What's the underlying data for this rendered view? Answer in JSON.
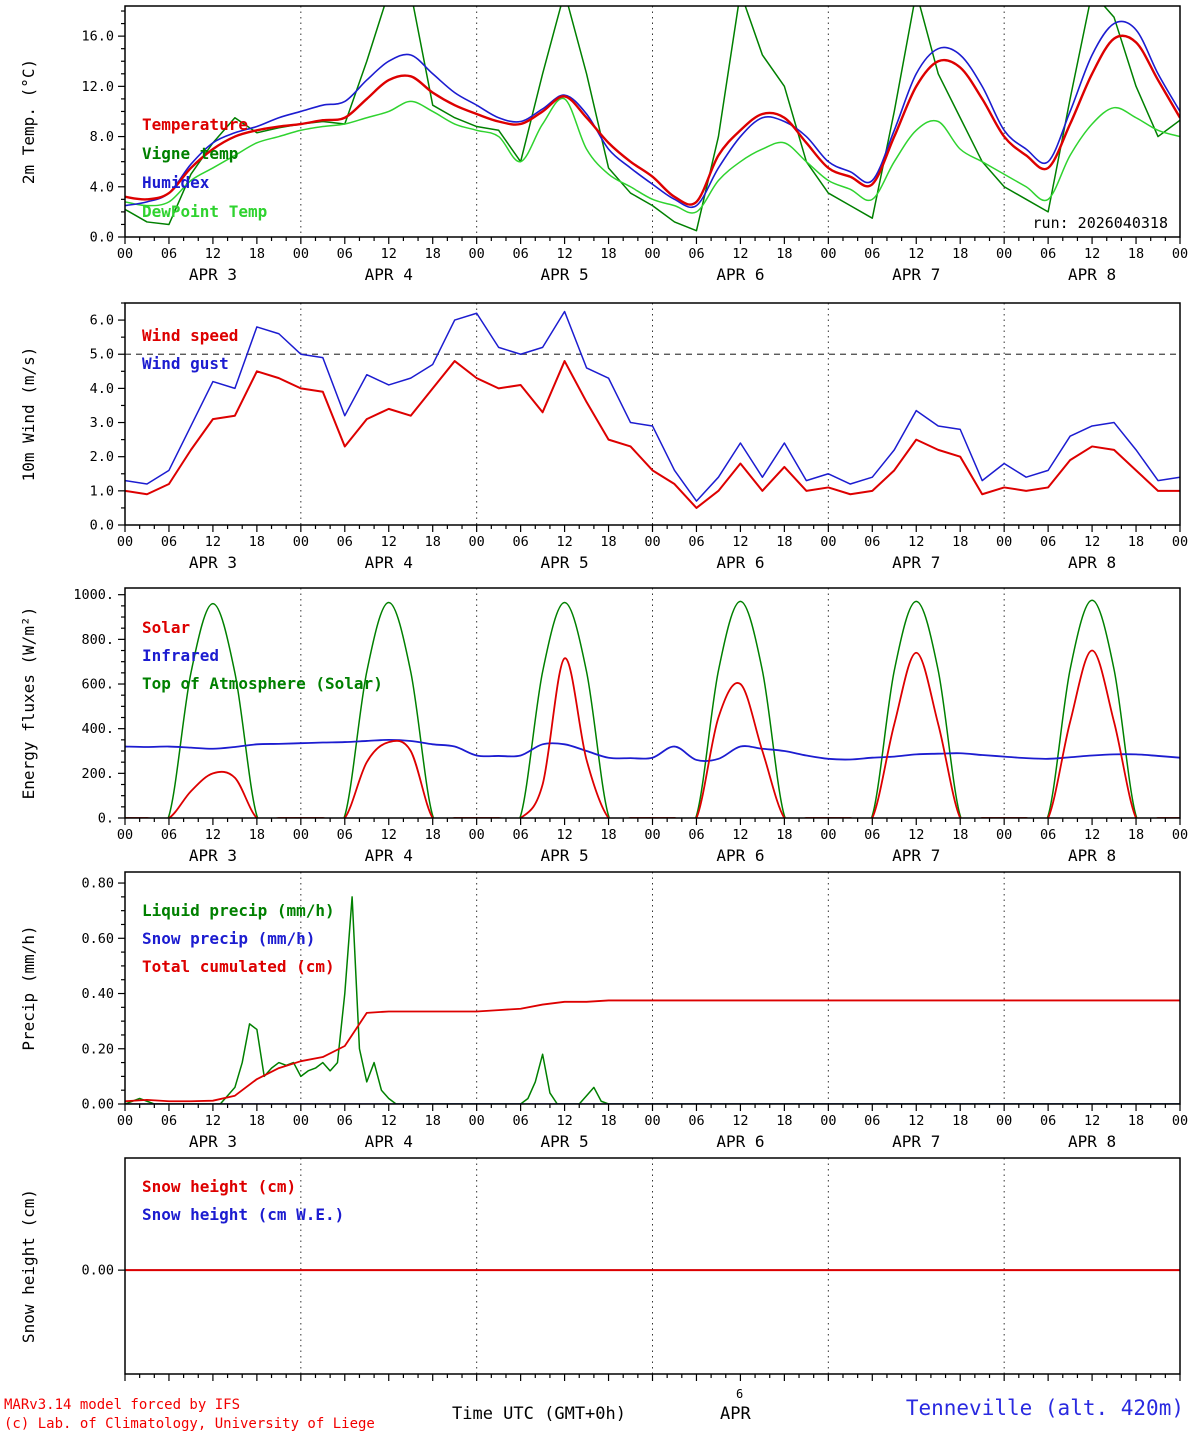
{
  "run_label": "run: 2026040318",
  "axis": {
    "hours_total": 144,
    "major_step": 6,
    "minor_step": 2,
    "hour_label_cycle": [
      "00",
      "06",
      "12",
      "18"
    ],
    "day_labels": [
      "APR  3",
      "APR  4",
      "APR  5",
      "APR  6",
      "APR  7",
      "APR  8"
    ]
  },
  "footer": {
    "credit_line1": "MARv3.14 model forced by IFS",
    "credit_line2": "(c) Lab. of Climatology, University of Liege",
    "time_axis_label": "Time UTC (GMT+0h)",
    "month_superscript": "6",
    "month_label": "APR",
    "station_label": "Tenneville (alt. 420m)"
  },
  "chart_data": [
    {
      "type": "line",
      "name": "temperature",
      "ylabel": "2m Temp. (°C)",
      "ylim": [
        0,
        18.4
      ],
      "minor": 1,
      "yticks": [
        {
          "v": 0,
          "label": "0.0"
        },
        {
          "v": 4,
          "label": "4.0"
        },
        {
          "v": 8,
          "label": "8.0"
        },
        {
          "v": 12,
          "label": "12.0"
        },
        {
          "v": 16,
          "label": "16.0"
        }
      ],
      "legend": [
        {
          "label": "Temperature",
          "color": "#dd0000"
        },
        {
          "label": "Vigne temp",
          "color": "#008000"
        },
        {
          "label": "Humidex",
          "color": "#1c1cd0"
        },
        {
          "label": "DewPoint Temp",
          "color": "#2fd32f"
        }
      ],
      "series": [
        {
          "name": "Vigne temp",
          "color": "#008000",
          "step": 3,
          "width": 1.5,
          "smooth": false,
          "values": [
            2.2,
            1.2,
            1.0,
            5.0,
            7.5,
            9.5,
            8.3,
            8.7,
            9.0,
            9.2,
            9.0,
            14.0,
            19.5,
            19.5,
            10.5,
            9.5,
            8.8,
            8.5,
            6.0,
            13.0,
            19.5,
            13.0,
            5.5,
            3.5,
            2.5,
            1.2,
            0.5,
            8.0,
            19.5,
            14.5,
            12.0,
            6.0,
            3.5,
            2.5,
            1.5,
            10.0,
            19.5,
            13.0,
            9.5,
            6.0,
            4.0,
            3.0,
            2.0,
            11.0,
            19.5,
            17.5,
            12.0,
            8.0,
            9.3
          ]
        },
        {
          "name": "DewPoint Temp",
          "color": "#2fd32f",
          "step": 3,
          "width": 1.5,
          "smooth": true,
          "values": [
            2.8,
            2.5,
            2.8,
            4.5,
            5.5,
            6.5,
            7.5,
            8.0,
            8.5,
            8.8,
            9.0,
            9.5,
            10.0,
            10.8,
            10.0,
            9.0,
            8.5,
            8.0,
            6.0,
            9.0,
            11.0,
            7.0,
            5.0,
            4.0,
            3.0,
            2.5,
            2.0,
            4.5,
            6.0,
            7.0,
            7.5,
            6.0,
            4.5,
            3.8,
            3.0,
            6.0,
            8.5,
            9.2,
            7.0,
            6.0,
            5.0,
            4.0,
            3.0,
            6.5,
            9.0,
            10.3,
            9.5,
            8.5,
            8.0
          ]
        },
        {
          "name": "Humidex",
          "color": "#1c1cd0",
          "step": 3,
          "width": 1.6,
          "smooth": true,
          "values": [
            2.5,
            2.8,
            3.5,
            5.8,
            7.5,
            8.3,
            8.8,
            9.5,
            10.0,
            10.5,
            10.8,
            12.5,
            14.0,
            14.5,
            13.0,
            11.5,
            10.5,
            9.5,
            9.2,
            10.2,
            11.3,
            9.8,
            7.0,
            5.5,
            4.2,
            3.0,
            2.5,
            5.5,
            8.0,
            9.5,
            9.2,
            8.0,
            6.0,
            5.2,
            4.5,
            8.5,
            13.0,
            15.0,
            14.5,
            12.0,
            8.5,
            7.0,
            6.0,
            10.0,
            14.5,
            17.0,
            16.5,
            13.0,
            10.0
          ]
        },
        {
          "name": "Temperature",
          "color": "#dd0000",
          "step": 3,
          "width": 2.4,
          "smooth": true,
          "values": [
            3.2,
            3.0,
            3.5,
            5.5,
            7.0,
            8.0,
            8.5,
            8.8,
            9.0,
            9.3,
            9.5,
            11.0,
            12.5,
            12.8,
            11.5,
            10.5,
            9.8,
            9.2,
            9.0,
            10.0,
            11.2,
            9.5,
            7.5,
            6.0,
            4.8,
            3.2,
            2.8,
            6.5,
            8.5,
            9.8,
            9.5,
            7.5,
            5.5,
            4.8,
            4.2,
            8.0,
            12.0,
            14.0,
            13.5,
            11.0,
            8.0,
            6.5,
            5.5,
            9.0,
            13.0,
            15.8,
            15.5,
            12.5,
            9.5
          ]
        }
      ]
    },
    {
      "type": "line",
      "name": "wind",
      "ylabel": "10m Wind (m/s)",
      "ylim": [
        0,
        6.5
      ],
      "minor": 0.5,
      "hline": 5.0,
      "yticks": [
        {
          "v": 0,
          "label": "0.0"
        },
        {
          "v": 1,
          "label": "1.0"
        },
        {
          "v": 2,
          "label": "2.0"
        },
        {
          "v": 3,
          "label": "3.0"
        },
        {
          "v": 4,
          "label": "4.0"
        },
        {
          "v": 5,
          "label": "5.0"
        },
        {
          "v": 6,
          "label": "6.0"
        }
      ],
      "legend": [
        {
          "label": "Wind speed",
          "color": "#dd0000"
        },
        {
          "label": "Wind gust",
          "color": "#1c1cd0"
        }
      ],
      "series": [
        {
          "name": "Wind gust",
          "color": "#1c1cd0",
          "step": 3,
          "width": 1.5,
          "smooth": false,
          "values": [
            1.3,
            1.2,
            1.6,
            2.9,
            4.2,
            4.0,
            5.8,
            5.6,
            5.0,
            4.9,
            3.2,
            4.4,
            4.1,
            4.3,
            4.7,
            6.0,
            6.2,
            5.2,
            5.0,
            5.2,
            6.25,
            4.6,
            4.3,
            3.0,
            2.9,
            1.6,
            0.7,
            1.4,
            2.4,
            1.4,
            2.4,
            1.3,
            1.5,
            1.2,
            1.4,
            2.2,
            3.35,
            2.9,
            2.8,
            1.3,
            1.8,
            1.4,
            1.6,
            2.6,
            2.9,
            3.0,
            2.2,
            1.3,
            1.4
          ]
        },
        {
          "name": "Wind speed",
          "color": "#dd0000",
          "step": 3,
          "width": 2.0,
          "smooth": false,
          "values": [
            1.0,
            0.9,
            1.2,
            2.2,
            3.1,
            3.2,
            4.5,
            4.3,
            4.0,
            3.9,
            2.3,
            3.1,
            3.4,
            3.2,
            4.0,
            4.8,
            4.3,
            4.0,
            4.1,
            3.3,
            4.8,
            3.6,
            2.5,
            2.3,
            1.6,
            1.2,
            0.5,
            1.0,
            1.8,
            1.0,
            1.7,
            1.0,
            1.1,
            0.9,
            1.0,
            1.6,
            2.5,
            2.2,
            2.0,
            0.9,
            1.1,
            1.0,
            1.1,
            1.9,
            2.3,
            2.2,
            1.6,
            1.0,
            1.0
          ]
        }
      ]
    },
    {
      "type": "line",
      "name": "energy-fluxes",
      "ylabel": "Energy fluxes (W/m²)",
      "ylim": [
        0,
        1030
      ],
      "minor": 50,
      "yticks": [
        {
          "v": 0,
          "label": "0."
        },
        {
          "v": 200,
          "label": "200."
        },
        {
          "v": 400,
          "label": "400."
        },
        {
          "v": 600,
          "label": "600."
        },
        {
          "v": 800,
          "label": "800."
        },
        {
          "v": 1000,
          "label": "1000."
        }
      ],
      "legend": [
        {
          "label": "Solar",
          "color": "#dd0000"
        },
        {
          "label": "Infrared",
          "color": "#1c1cd0"
        },
        {
          "label": "Top of Atmosphere (Solar)",
          "color": "#008000"
        }
      ],
      "series": [
        {
          "name": "Top of Atmosphere (Solar)",
          "color": "#008000",
          "step": 3,
          "width": 1.5,
          "smooth": true,
          "values": [
            0,
            0,
            10,
            650,
            960,
            650,
            10,
            0,
            0,
            0,
            10,
            655,
            965,
            655,
            10,
            0,
            0,
            0,
            10,
            655,
            965,
            655,
            10,
            0,
            0,
            0,
            10,
            660,
            970,
            660,
            10,
            0,
            0,
            0,
            10,
            660,
            970,
            660,
            10,
            0,
            0,
            0,
            10,
            665,
            975,
            665,
            10,
            0,
            0
          ]
        },
        {
          "name": "Infrared",
          "color": "#1c1cd0",
          "step": 3,
          "width": 1.8,
          "smooth": true,
          "values": [
            320,
            318,
            320,
            315,
            310,
            318,
            330,
            332,
            335,
            338,
            340,
            345,
            350,
            345,
            330,
            320,
            280,
            278,
            280,
            330,
            330,
            300,
            270,
            268,
            270,
            320,
            260,
            265,
            320,
            310,
            300,
            280,
            265,
            262,
            270,
            275,
            285,
            288,
            290,
            282,
            275,
            268,
            265,
            272,
            280,
            285,
            285,
            278,
            270
          ]
        },
        {
          "name": "Solar",
          "color": "#dd0000",
          "step": 3,
          "width": 1.8,
          "smooth": true,
          "values": [
            0,
            0,
            0,
            120,
            200,
            180,
            0,
            0,
            0,
            0,
            0,
            250,
            340,
            300,
            0,
            0,
            0,
            0,
            0,
            150,
            715,
            260,
            0,
            0,
            0,
            0,
            0,
            450,
            600,
            300,
            0,
            0,
            0,
            0,
            0,
            420,
            740,
            420,
            0,
            0,
            0,
            0,
            0,
            430,
            750,
            430,
            0,
            0,
            0
          ]
        }
      ]
    },
    {
      "type": "line",
      "name": "precip",
      "ylabel": "Precip (mm/h)",
      "ylim": [
        0,
        0.84
      ],
      "minor": 0.05,
      "yticks": [
        {
          "v": 0,
          "label": "0.00"
        },
        {
          "v": 0.2,
          "label": "0.20"
        },
        {
          "v": 0.4,
          "label": "0.40"
        },
        {
          "v": 0.6,
          "label": "0.60"
        },
        {
          "v": 0.8,
          "label": "0.80"
        }
      ],
      "legend": [
        {
          "label": "Liquid precip (mm/h)",
          "color": "#008000"
        },
        {
          "label": "Snow precip (mm/h)",
          "color": "#1c1cd0"
        },
        {
          "label": "Total cumulated (cm)",
          "color": "#dd0000"
        }
      ],
      "series": [
        {
          "name": "Liquid precip",
          "color": "#008000",
          "width": 1.5,
          "smooth": false,
          "points": [
            [
              0,
              0
            ],
            [
              1,
              0.01
            ],
            [
              2,
              0.02
            ],
            [
              3,
              0.01
            ],
            [
              4,
              0
            ],
            [
              13,
              0
            ],
            [
              14,
              0.03
            ],
            [
              15,
              0.06
            ],
            [
              16,
              0.15
            ],
            [
              17,
              0.29
            ],
            [
              18,
              0.27
            ],
            [
              19,
              0.1
            ],
            [
              20,
              0.13
            ],
            [
              21,
              0.15
            ],
            [
              22,
              0.14
            ],
            [
              23,
              0.15
            ],
            [
              24,
              0.1
            ],
            [
              25,
              0.12
            ],
            [
              26,
              0.13
            ],
            [
              27,
              0.15
            ],
            [
              28,
              0.12
            ],
            [
              29,
              0.15
            ],
            [
              30,
              0.4
            ],
            [
              31,
              0.75
            ],
            [
              32,
              0.2
            ],
            [
              33,
              0.08
            ],
            [
              34,
              0.15
            ],
            [
              35,
              0.05
            ],
            [
              36,
              0.02
            ],
            [
              37,
              0
            ],
            [
              54,
              0
            ],
            [
              55,
              0.02
            ],
            [
              56,
              0.08
            ],
            [
              57,
              0.18
            ],
            [
              58,
              0.04
            ],
            [
              59,
              0
            ],
            [
              62,
              0
            ],
            [
              63,
              0.03
            ],
            [
              64,
              0.06
            ],
            [
              65,
              0.01
            ],
            [
              66,
              0
            ],
            [
              144,
              0
            ]
          ]
        },
        {
          "name": "Snow precip",
          "color": "#1c1cd0",
          "width": 1.5,
          "smooth": false,
          "points": [
            [
              0,
              0
            ],
            [
              144,
              0
            ]
          ]
        },
        {
          "name": "Total cumulated",
          "color": "#dd0000",
          "step": 3,
          "width": 1.8,
          "smooth": false,
          "values": [
            0.01,
            0.015,
            0.01,
            0.01,
            0.012,
            0.03,
            0.09,
            0.13,
            0.155,
            0.17,
            0.21,
            0.33,
            0.335,
            0.335,
            0.335,
            0.335,
            0.335,
            0.34,
            0.345,
            0.36,
            0.37,
            0.37,
            0.375,
            0.375,
            0.375,
            0.375,
            0.375,
            0.375,
            0.375,
            0.375,
            0.375,
            0.375,
            0.375,
            0.375,
            0.375,
            0.375,
            0.375,
            0.375,
            0.375,
            0.375,
            0.375,
            0.375,
            0.375,
            0.375,
            0.375,
            0.375,
            0.375,
            0.375,
            0.375
          ]
        }
      ]
    },
    {
      "type": "line",
      "name": "snow-height",
      "ylabel": "Snow height (cm)",
      "ylim": [
        -0.88,
        0.95
      ],
      "minor": null,
      "yticks": [
        {
          "v": 0,
          "label": "0.00"
        }
      ],
      "legend": [
        {
          "label": "Snow height (cm)",
          "color": "#dd0000"
        },
        {
          "label": "Snow height (cm W.E.)",
          "color": "#1c1cd0"
        }
      ],
      "series": [
        {
          "name": "Snow height W.E.",
          "color": "#1c1cd0",
          "width": 1.5,
          "smooth": false,
          "points": [
            [
              0,
              0
            ],
            [
              144,
              0
            ]
          ]
        },
        {
          "name": "Snow height",
          "color": "#dd0000",
          "width": 2.0,
          "smooth": false,
          "points": [
            [
              0,
              0
            ],
            [
              144,
              0
            ]
          ]
        }
      ]
    }
  ]
}
